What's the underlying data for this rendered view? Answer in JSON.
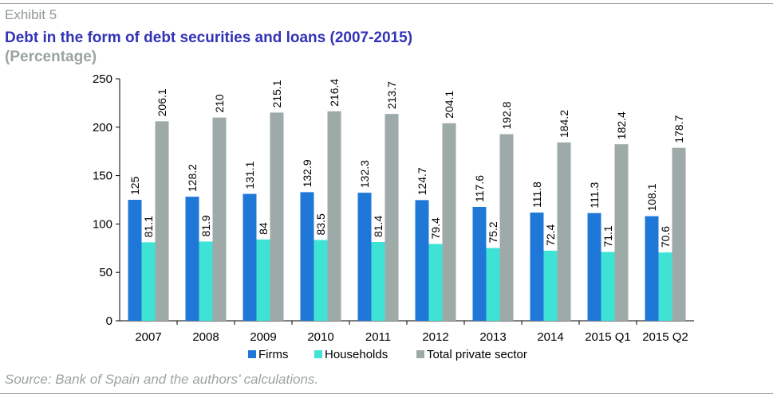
{
  "header": {
    "exhibit": "Exhibit 5",
    "title": "Debt in the form of debt securities and loans (2007-2015)",
    "subtitle": "(Percentage)"
  },
  "footer": {
    "source": "Source: Bank of Spain and the authors’ calculations."
  },
  "chart_data": {
    "type": "bar",
    "title": "Debt in the form of debt securities and loans (2007-2015)",
    "subtitle": "(Percentage)",
    "xlabel": "",
    "ylabel": "",
    "ylim": [
      0,
      250
    ],
    "yticks": [
      0,
      50,
      100,
      150,
      200,
      250
    ],
    "grid": false,
    "legend_position": "bottom",
    "categories": [
      "2007",
      "2008",
      "2009",
      "2010",
      "2011",
      "2012",
      "2013",
      "2014",
      "2015 Q1",
      "2015 Q2"
    ],
    "series": [
      {
        "name": "Firms",
        "color": "#1f78d8",
        "values": [
          125,
          128.2,
          131.1,
          132.9,
          132.3,
          124.7,
          117.6,
          111.8,
          111.3,
          108.1
        ]
      },
      {
        "name": "Households",
        "color": "#3fe3d6",
        "values": [
          81.1,
          81.9,
          84,
          83.5,
          81.4,
          79.4,
          75.2,
          72.4,
          71.1,
          70.6
        ]
      },
      {
        "name": "Total private sector",
        "color": "#9eaaa8",
        "values": [
          206.1,
          210,
          215.1,
          216.4,
          213.7,
          204.1,
          192.8,
          184.2,
          182.4,
          178.7
        ]
      }
    ]
  }
}
